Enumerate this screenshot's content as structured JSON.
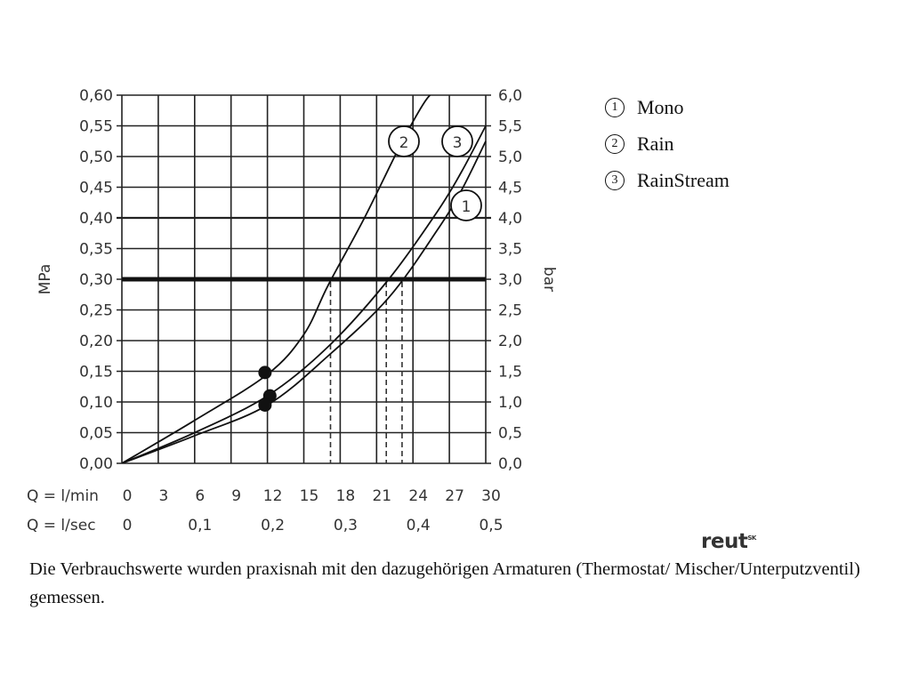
{
  "chart_data": {
    "type": "line",
    "left_axis": {
      "label": "MPa",
      "ticks": [
        "0,00",
        "0,05",
        "0,10",
        "0,15",
        "0,20",
        "0,25",
        "0,30",
        "0,35",
        "0,40",
        "0,45",
        "0,50",
        "0,55",
        "0,60"
      ],
      "ylim": [
        0,
        0.6
      ]
    },
    "right_axis": {
      "label": "bar",
      "ticks": [
        "0,0",
        "0,5",
        "1,0",
        "1,5",
        "2,0",
        "2,5",
        "3,0",
        "3,5",
        "4,0",
        "4,5",
        "5,0",
        "5,5",
        "6,0"
      ]
    },
    "x_rows": [
      {
        "label": "Q = l/min",
        "ticks": [
          "0",
          "3",
          "6",
          "9",
          "12",
          "15",
          "18",
          "21",
          "24",
          "27",
          "30"
        ],
        "values": [
          0,
          3,
          6,
          9,
          12,
          15,
          18,
          21,
          24,
          27,
          30
        ]
      },
      {
        "label": "Q = l/sec",
        "ticks": [
          "0",
          "0,1",
          "0,2",
          "0,3",
          "0,4",
          "0,5"
        ],
        "values": [
          0,
          6,
          12,
          18,
          24,
          30
        ]
      }
    ],
    "xlim": [
      0,
      30
    ],
    "grid": true,
    "reference_line": 0.3,
    "series": [
      {
        "name": "1",
        "x": [
          0,
          6,
          12,
          17,
          22,
          26,
          28,
          30
        ],
        "y": [
          0,
          0.045,
          0.095,
          0.175,
          0.27,
          0.38,
          0.445,
          0.525
        ]
      },
      {
        "name": "2",
        "x": [
          0,
          6,
          12,
          15,
          17,
          20,
          23,
          25,
          26
        ],
        "y": [
          0,
          0.07,
          0.145,
          0.21,
          0.29,
          0.4,
          0.52,
          0.59,
          0.61
        ]
      },
      {
        "name": "3",
        "x": [
          0,
          6,
          12,
          17,
          22,
          26,
          28,
          30
        ],
        "y": [
          0,
          0.05,
          0.11,
          0.19,
          0.3,
          0.41,
          0.475,
          0.55
        ]
      }
    ],
    "markers": [
      {
        "x": 11.8,
        "y": 0.148
      },
      {
        "x": 12.2,
        "y": 0.11
      },
      {
        "x": 11.8,
        "y": 0.095
      }
    ],
    "dashed_drops": [
      17.2,
      21.8,
      23.1
    ]
  },
  "legend": [
    {
      "mark": "1",
      "label": "Mono"
    },
    {
      "mark": "2",
      "label": "Rain"
    },
    {
      "mark": "3",
      "label": "RainStream"
    }
  ],
  "caption": "Die Verbrauchswerte wurden praxisnah mit den dazugehörigen Armaturen (Thermostat/ Mischer/Unterputzventil) gemessen.",
  "logo": {
    "text": "reut",
    "suffix": "SK"
  }
}
